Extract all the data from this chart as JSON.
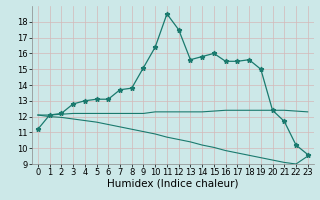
{
  "xlabel": "Humidex (Indice chaleur)",
  "ylabel": "",
  "bg_color": "#cce8e8",
  "grid_color": "#b0d0d0",
  "line_color": "#1a7a6e",
  "x": [
    0,
    1,
    2,
    3,
    4,
    5,
    6,
    7,
    8,
    9,
    10,
    11,
    12,
    13,
    14,
    15,
    16,
    17,
    18,
    19,
    20,
    21,
    22,
    23
  ],
  "y_main": [
    11.2,
    12.1,
    12.2,
    12.8,
    13.0,
    13.1,
    13.1,
    13.7,
    13.8,
    15.1,
    16.4,
    18.5,
    17.5,
    15.6,
    15.8,
    16.0,
    15.5,
    15.5,
    15.6,
    15.0,
    12.4,
    11.7,
    10.2,
    9.6
  ],
  "y_line1": [
    12.1,
    12.1,
    12.15,
    12.2,
    12.2,
    12.2,
    12.2,
    12.2,
    12.2,
    12.2,
    12.3,
    12.3,
    12.3,
    12.3,
    12.3,
    12.35,
    12.4,
    12.4,
    12.4,
    12.4,
    12.4,
    12.4,
    12.35,
    12.3
  ],
  "y_line2": [
    12.1,
    12.0,
    11.95,
    11.85,
    11.75,
    11.65,
    11.5,
    11.35,
    11.2,
    11.05,
    10.9,
    10.7,
    10.55,
    10.4,
    10.2,
    10.05,
    9.85,
    9.7,
    9.55,
    9.4,
    9.25,
    9.1,
    9.0,
    9.5
  ],
  "ylim": [
    9,
    19
  ],
  "yticks": [
    9,
    10,
    11,
    12,
    13,
    14,
    15,
    16,
    17,
    18
  ],
  "xlim": [
    -0.5,
    23.5
  ],
  "xticks": [
    0,
    1,
    2,
    3,
    4,
    5,
    6,
    7,
    8,
    9,
    10,
    11,
    12,
    13,
    14,
    15,
    16,
    17,
    18,
    19,
    20,
    21,
    22,
    23
  ],
  "tick_fontsize": 6,
  "label_fontsize": 7.5
}
